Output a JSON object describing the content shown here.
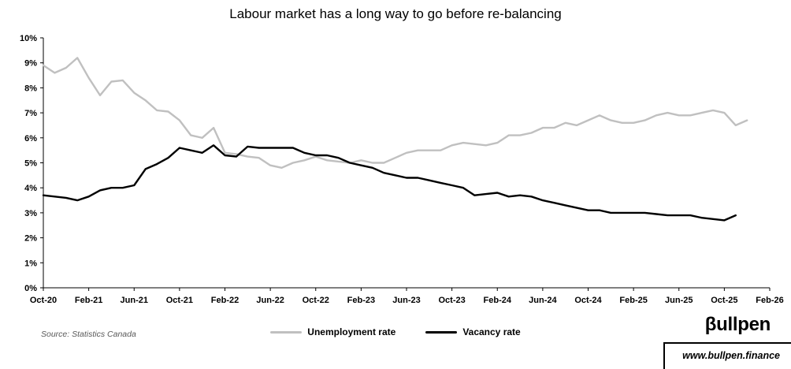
{
  "title": "Labour market has a long way to go before re-balancing",
  "source": "Source: Statistics Canada",
  "legend": [
    {
      "label": "Unemployment rate",
      "color": "#c0c0c0"
    },
    {
      "label": "Vacancy rate",
      "color": "#000000"
    }
  ],
  "footer": {
    "logo": "βullpen",
    "website": "www.bullpen.finance"
  },
  "chart_data": {
    "type": "line",
    "title": "Labour market has a long way to go before re-balancing",
    "x_unit": "month",
    "x_start": "Oct-2020",
    "x_tick_interval_months": 4,
    "x_tick_labels": [
      "Oct-20",
      "Feb-21",
      "Jun-21",
      "Oct-21",
      "Feb-22",
      "Jun-22",
      "Oct-22",
      "Feb-23",
      "Jun-23",
      "Oct-23",
      "Feb-24",
      "Jun-24",
      "Oct-24",
      "Feb-25",
      "Jun-25",
      "Oct-25",
      "Feb-26"
    ],
    "ylim": [
      0,
      10
    ],
    "y_tick_labels": [
      "0%",
      "1%",
      "2%",
      "3%",
      "4%",
      "5%",
      "6%",
      "7%",
      "8%",
      "9%",
      "10%"
    ],
    "grid": false,
    "legend_position": "bottom",
    "series": [
      {
        "name": "Unemployment rate",
        "color": "#c0c0c0",
        "start_month": "Oct-2020",
        "values": [
          8.9,
          8.6,
          8.8,
          9.2,
          8.4,
          7.7,
          8.25,
          8.3,
          7.8,
          7.5,
          7.1,
          7.05,
          6.7,
          6.1,
          6.0,
          6.4,
          5.4,
          5.35,
          5.25,
          5.2,
          4.9,
          4.8,
          5.0,
          5.1,
          5.25,
          5.1,
          5.05,
          5.0,
          5.1,
          5.0,
          5.0,
          5.2,
          5.4,
          5.5,
          5.5,
          5.5,
          5.7,
          5.8,
          5.75,
          5.7,
          5.8,
          6.1,
          6.1,
          6.2,
          6.4,
          6.4,
          6.6,
          6.5,
          6.7,
          6.9,
          6.7,
          6.6,
          6.6,
          6.7,
          6.9,
          7.0,
          6.9,
          6.9,
          7.0,
          7.1,
          7.0,
          6.5,
          6.7
        ]
      },
      {
        "name": "Vacancy rate",
        "color": "#000000",
        "start_month": "Oct-2020",
        "values": [
          3.7,
          3.65,
          3.6,
          3.5,
          3.65,
          3.9,
          4.0,
          4.0,
          4.1,
          4.75,
          4.95,
          5.2,
          5.6,
          5.5,
          5.4,
          5.7,
          5.3,
          5.25,
          5.65,
          5.6,
          5.6,
          5.6,
          5.6,
          5.4,
          5.3,
          5.3,
          5.2,
          5.0,
          4.9,
          4.8,
          4.6,
          4.5,
          4.4,
          4.4,
          4.3,
          4.2,
          4.1,
          4.0,
          3.7,
          3.75,
          3.8,
          3.65,
          3.7,
          3.65,
          3.5,
          3.4,
          3.3,
          3.2,
          3.1,
          3.1,
          3.0,
          3.0,
          3.0,
          3.0,
          2.95,
          2.9,
          2.9,
          2.9,
          2.8,
          2.75,
          2.7,
          2.9
        ]
      }
    ]
  }
}
